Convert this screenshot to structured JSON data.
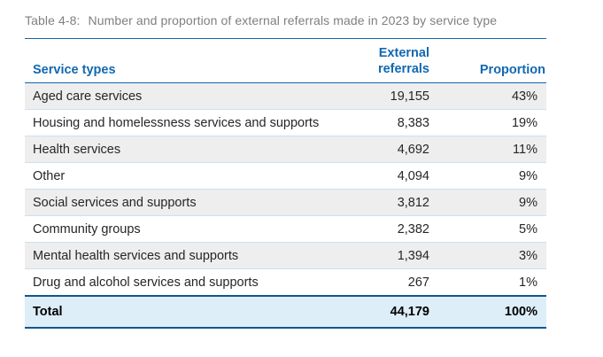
{
  "caption": {
    "label": "Table 4-8:",
    "text": "Number and proportion of external referrals made in 2023 by service type"
  },
  "table": {
    "columns": [
      {
        "key": "service",
        "label": "Service types",
        "align": "left"
      },
      {
        "key": "referrals",
        "label": "External referrals",
        "align": "right"
      },
      {
        "key": "proportion",
        "label": "Proportion",
        "align": "right"
      }
    ],
    "rows": [
      {
        "service": "Aged care services",
        "referrals": "19,155",
        "proportion": "43%"
      },
      {
        "service": "Housing and homelessness services and supports",
        "referrals": "8,383",
        "proportion": "19%"
      },
      {
        "service": "Health services",
        "referrals": "4,692",
        "proportion": "11%"
      },
      {
        "service": "Other",
        "referrals": "4,094",
        "proportion": "9%"
      },
      {
        "service": "Social services and supports",
        "referrals": "3,812",
        "proportion": "9%"
      },
      {
        "service": "Community groups",
        "referrals": "2,382",
        "proportion": "5%"
      },
      {
        "service": "Mental health services and supports",
        "referrals": "1,394",
        "proportion": "3%"
      },
      {
        "service": "Drug and alcohol services and supports",
        "referrals": "267",
        "proportion": "1%"
      }
    ],
    "total": {
      "service": "Total",
      "referrals": "44,179",
      "proportion": "100%"
    }
  },
  "colors": {
    "header-blue": "#1268b1",
    "dark-border": "#0f5791",
    "total-bg": "#ddeef9",
    "zebra-bg": "#eeeeee",
    "separator": "#c9e1f3",
    "title-gray": "#7f7f7f",
    "body-text": "#262626"
  }
}
